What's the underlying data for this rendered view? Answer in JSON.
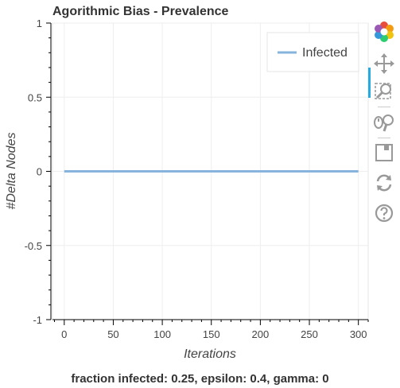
{
  "chart_data": {
    "type": "line",
    "title": "Agorithmic Bias - Prevalence",
    "xlabel": "Iterations",
    "ylabel": "#Delta Nodes",
    "xlim": [
      -12,
      310
    ],
    "ylim": [
      -1,
      1
    ],
    "x_ticks": [
      0,
      50,
      100,
      150,
      200,
      250,
      300
    ],
    "x_tick_labels": [
      "0",
      "50",
      "100",
      "150",
      "200",
      "250",
      "300"
    ],
    "y_ticks": [
      1,
      0.5,
      0,
      -0.5,
      -1
    ],
    "y_tick_labels": [
      "1",
      "0.5",
      "0",
      "-0.5",
      "-1"
    ],
    "grid": true,
    "legend_position": "top-right",
    "series": [
      {
        "name": "Infected",
        "color": "#86b4dc",
        "x": [
          0,
          300
        ],
        "y": [
          0,
          0
        ]
      }
    ]
  },
  "caption": "fraction infected: 0.25, epsilon: 0.4, gamma: 0",
  "toolbar": {
    "tools": [
      "bokeh-logo-icon",
      "pan-icon",
      "box-zoom-icon",
      "wheel-zoom-icon",
      "save-icon",
      "reset-icon",
      "help-icon"
    ]
  }
}
